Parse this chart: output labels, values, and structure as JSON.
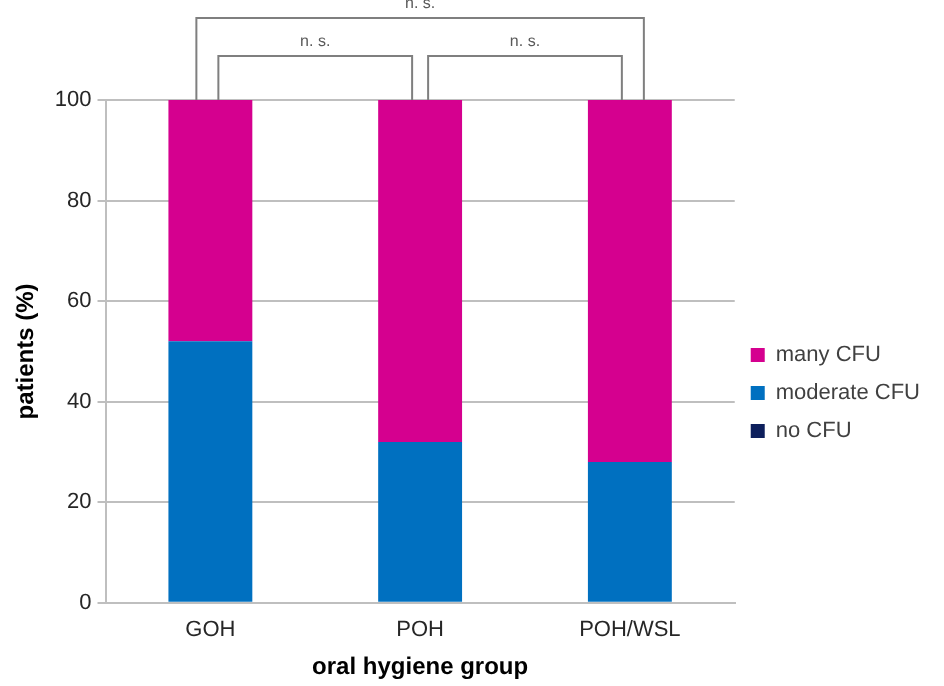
{
  "chart_data": {
    "type": "bar",
    "stacked": true,
    "xlabel": "oral hygiene group",
    "ylabel": "patients (%)",
    "categories": [
      "GOH",
      "POH",
      "POH/WSL"
    ],
    "series": [
      {
        "name": "no CFU",
        "color": "#0d1f5c",
        "values": [
          0,
          0,
          0
        ]
      },
      {
        "name": "moderate CFU",
        "color": "#0070c0",
        "values": [
          52,
          32,
          28
        ]
      },
      {
        "name": "many CFU",
        "color": "#d5008f",
        "values": [
          48,
          68,
          72
        ]
      }
    ],
    "ylim": [
      0,
      100
    ],
    "yticks": [
      0,
      20,
      40,
      60,
      80,
      100
    ],
    "grid": "y",
    "legend": "right",
    "annotations": [
      "n. s.",
      "n. s.",
      "n. s."
    ]
  }
}
